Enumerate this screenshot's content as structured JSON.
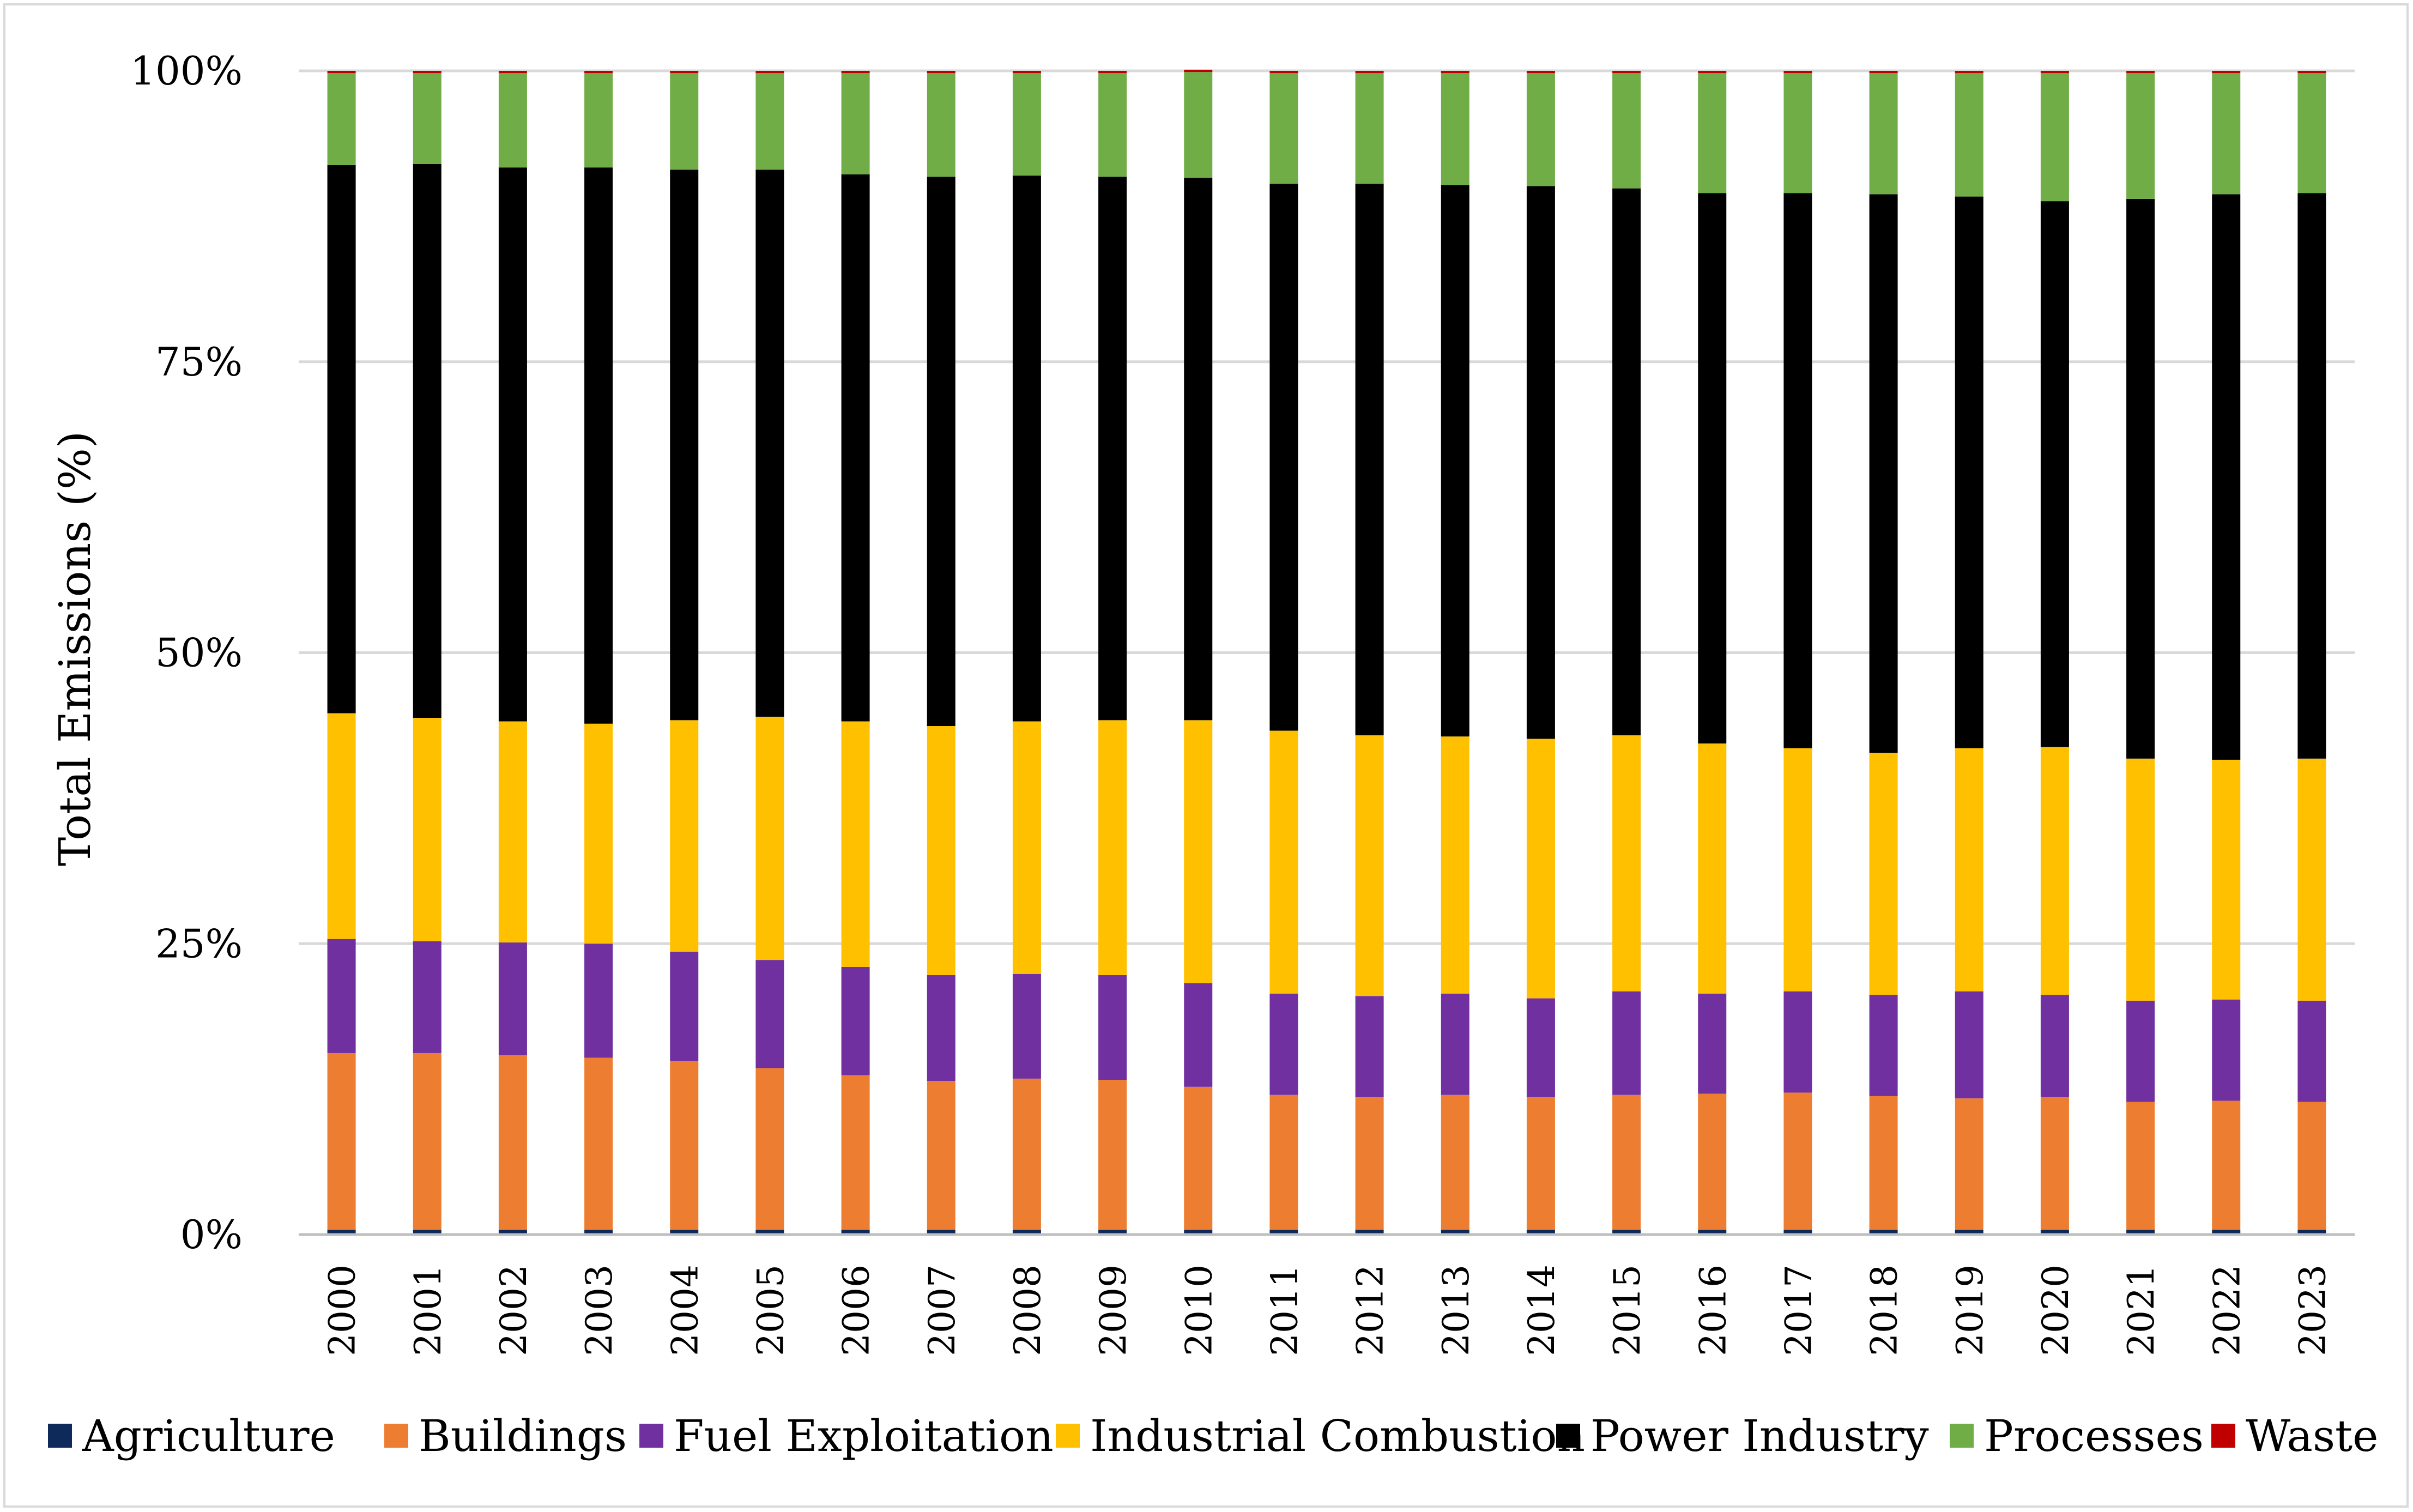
{
  "chart_data": {
    "type": "bar",
    "stacked": true,
    "title": "",
    "xlabel": "",
    "ylabel": "Total Emissions (%)",
    "ylim": [
      0,
      100
    ],
    "ytick_labels": [
      "0%",
      "25%",
      "50%",
      "75%",
      "100%"
    ],
    "ytick_values": [
      0,
      25,
      50,
      75,
      100
    ],
    "grid": true,
    "legend_position": "bottom",
    "categories": [
      "2000",
      "2001",
      "2002",
      "2003",
      "2004",
      "2005",
      "2006",
      "2007",
      "2008",
      "2009",
      "2010",
      "2011",
      "2012",
      "2013",
      "2014",
      "2015",
      "2016",
      "2017",
      "2018",
      "2019",
      "2020",
      "2021",
      "2022",
      "2023"
    ],
    "series": [
      {
        "name": "Agriculture",
        "color": "#0e2a5a",
        "values": [
          0.4,
          0.4,
          0.4,
          0.4,
          0.4,
          0.4,
          0.4,
          0.4,
          0.4,
          0.4,
          0.4,
          0.4,
          0.4,
          0.4,
          0.4,
          0.4,
          0.4,
          0.4,
          0.4,
          0.4,
          0.4,
          0.4,
          0.4,
          0.4
        ]
      },
      {
        "name": "Buildings",
        "color": "#ed7d31",
        "values": [
          15.2,
          15.2,
          15.0,
          14.8,
          14.5,
          13.9,
          13.3,
          12.8,
          13.0,
          12.9,
          12.3,
          11.6,
          11.4,
          11.6,
          11.4,
          11.6,
          11.7,
          11.8,
          11.5,
          11.3,
          11.4,
          11.0,
          11.1,
          11.0
        ]
      },
      {
        "name": "Fuel Exploitation",
        "color": "#7030a0",
        "values": [
          9.8,
          9.6,
          9.7,
          9.8,
          9.4,
          9.3,
          9.3,
          9.1,
          9.0,
          9.0,
          8.9,
          8.7,
          8.7,
          8.7,
          8.5,
          8.9,
          8.6,
          8.7,
          8.7,
          9.2,
          8.8,
          8.7,
          8.7,
          8.7
        ]
      },
      {
        "name": "Industrial Combustion",
        "color": "#ffc000",
        "values": [
          19.4,
          19.2,
          19.0,
          18.9,
          19.9,
          20.9,
          21.1,
          21.4,
          21.7,
          21.9,
          22.6,
          22.6,
          22.4,
          22.1,
          22.3,
          22.0,
          21.5,
          20.9,
          20.8,
          20.9,
          21.3,
          20.8,
          20.6,
          20.8
        ]
      },
      {
        "name": "Power Industry",
        "color": "#000000",
        "values": [
          47.1,
          47.6,
          47.6,
          47.8,
          47.3,
          47.0,
          47.0,
          47.2,
          46.9,
          46.7,
          46.6,
          47.0,
          47.4,
          47.4,
          47.5,
          47.0,
          47.3,
          47.7,
          48.0,
          47.4,
          46.9,
          48.1,
          48.6,
          48.6
        ]
      },
      {
        "name": "Processes",
        "color": "#70ad47",
        "values": [
          7.9,
          7.8,
          8.1,
          8.1,
          8.3,
          8.3,
          8.7,
          8.9,
          8.8,
          8.9,
          9.1,
          9.5,
          9.5,
          9.6,
          9.7,
          9.9,
          10.3,
          10.3,
          10.4,
          10.6,
          11.0,
          10.8,
          10.4,
          10.3
        ]
      },
      {
        "name": "Waste",
        "color": "#c00000",
        "values": [
          0.2,
          0.2,
          0.2,
          0.2,
          0.2,
          0.2,
          0.2,
          0.2,
          0.2,
          0.2,
          0.2,
          0.2,
          0.2,
          0.2,
          0.2,
          0.2,
          0.2,
          0.2,
          0.2,
          0.2,
          0.2,
          0.2,
          0.2,
          0.2
        ]
      }
    ]
  }
}
